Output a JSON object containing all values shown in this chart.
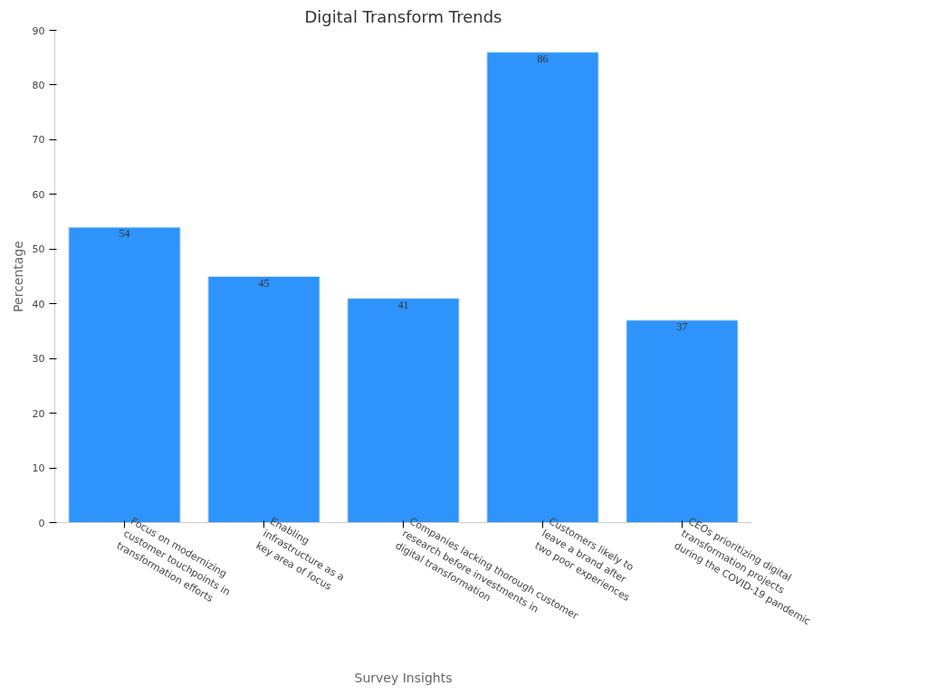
{
  "chart_data": {
    "type": "bar",
    "title": "Digital Transform Trends",
    "xlabel": "Survey Insights",
    "ylabel": "Percentage",
    "categories": [
      "Focus on modernizing customer touchpoints in transformation efforts",
      "Enabling infrastructure as a key area of focus",
      "Companies lacking thorough customer research before investments in digital transformation",
      "Customers likely to leave a brand after two poor experiences",
      "CEOs prioritizing digital transformation projects during the COVID-19 pandemic"
    ],
    "values": [
      54,
      45,
      41,
      86,
      37
    ],
    "color": "#2e93fa",
    "ylim": [
      0,
      90
    ],
    "yticks": [
      0,
      10,
      20,
      30,
      40,
      50,
      60,
      70,
      80,
      90
    ],
    "grid": false,
    "data_labels": true
  }
}
